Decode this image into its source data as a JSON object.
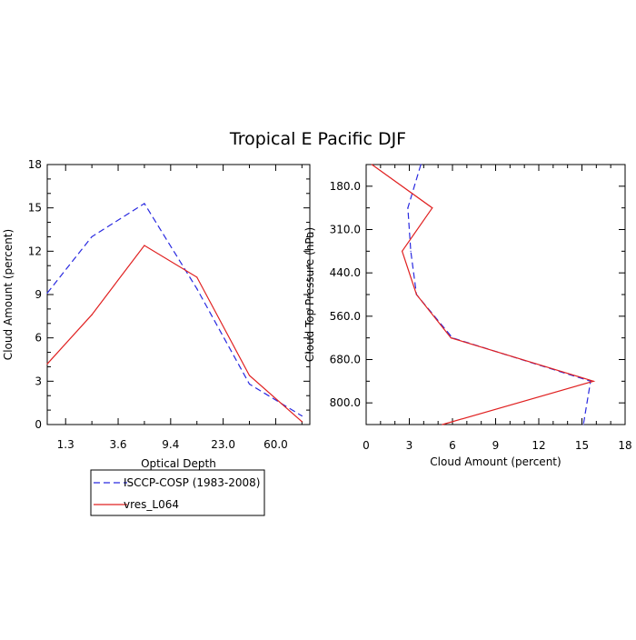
{
  "title": "Tropical E Pacific DJF",
  "colors": {
    "obs": "#2929e0",
    "model": "#e02020",
    "axis": "#000000"
  },
  "legend": {
    "entries": [
      {
        "label": "ISCCP-COSP (1983-2008)",
        "style": "dashed",
        "color": "#2929e0"
      },
      {
        "label": "vres_L064",
        "style": "solid",
        "color": "#e02020"
      }
    ]
  },
  "chart_data": [
    {
      "type": "line",
      "xlabel": "Optical Depth",
      "ylabel": "Cloud Amount (percent)",
      "x_tick_labels": [
        "1.3",
        "3.6",
        "9.4",
        "23.0",
        "60.0"
      ],
      "ylim": [
        0,
        18
      ],
      "y_ticks": [
        0,
        3,
        6,
        9,
        12,
        15,
        18
      ],
      "series": [
        {
          "name": "ISCCP-COSP (1983-2008)",
          "x": [
            0.3,
            2.0,
            4.0,
            6.0,
            8.0,
            10.0
          ],
          "values": [
            9.1,
            13.0,
            15.3,
            9.4,
            2.8,
            0.6
          ]
        },
        {
          "name": "vres_L064",
          "x": [
            0.3,
            2.0,
            4.0,
            6.0,
            8.0,
            10.0
          ],
          "values": [
            4.2,
            7.6,
            12.4,
            10.2,
            3.4,
            0.2
          ]
        }
      ],
      "legend_position": "below"
    },
    {
      "type": "line",
      "xlabel": "Cloud Amount (percent)",
      "ylabel": "Cloud Top Pressure (hPa)",
      "xlim": [
        0,
        18
      ],
      "x_ticks": [
        0,
        3,
        6,
        9,
        12,
        15,
        18
      ],
      "y_tick_labels": [
        "180.0",
        "310.0",
        "440.0",
        "560.0",
        "680.0",
        "800.0"
      ],
      "series": [
        {
          "name": "ISCCP-COSP (1983-2008)",
          "y": [
            0.0,
            1.0,
            2.0,
            3.0,
            4.0,
            5.0,
            6.0
          ],
          "values": [
            3.8,
            2.9,
            3.1,
            3.5,
            6.0,
            15.6,
            15.1
          ]
        },
        {
          "name": "vres_L064",
          "y": [
            0.0,
            1.0,
            2.0,
            3.0,
            4.0,
            5.0,
            6.0
          ],
          "values": [
            0.4,
            4.6,
            2.5,
            3.5,
            5.9,
            15.8,
            5.3
          ]
        }
      ]
    }
  ]
}
